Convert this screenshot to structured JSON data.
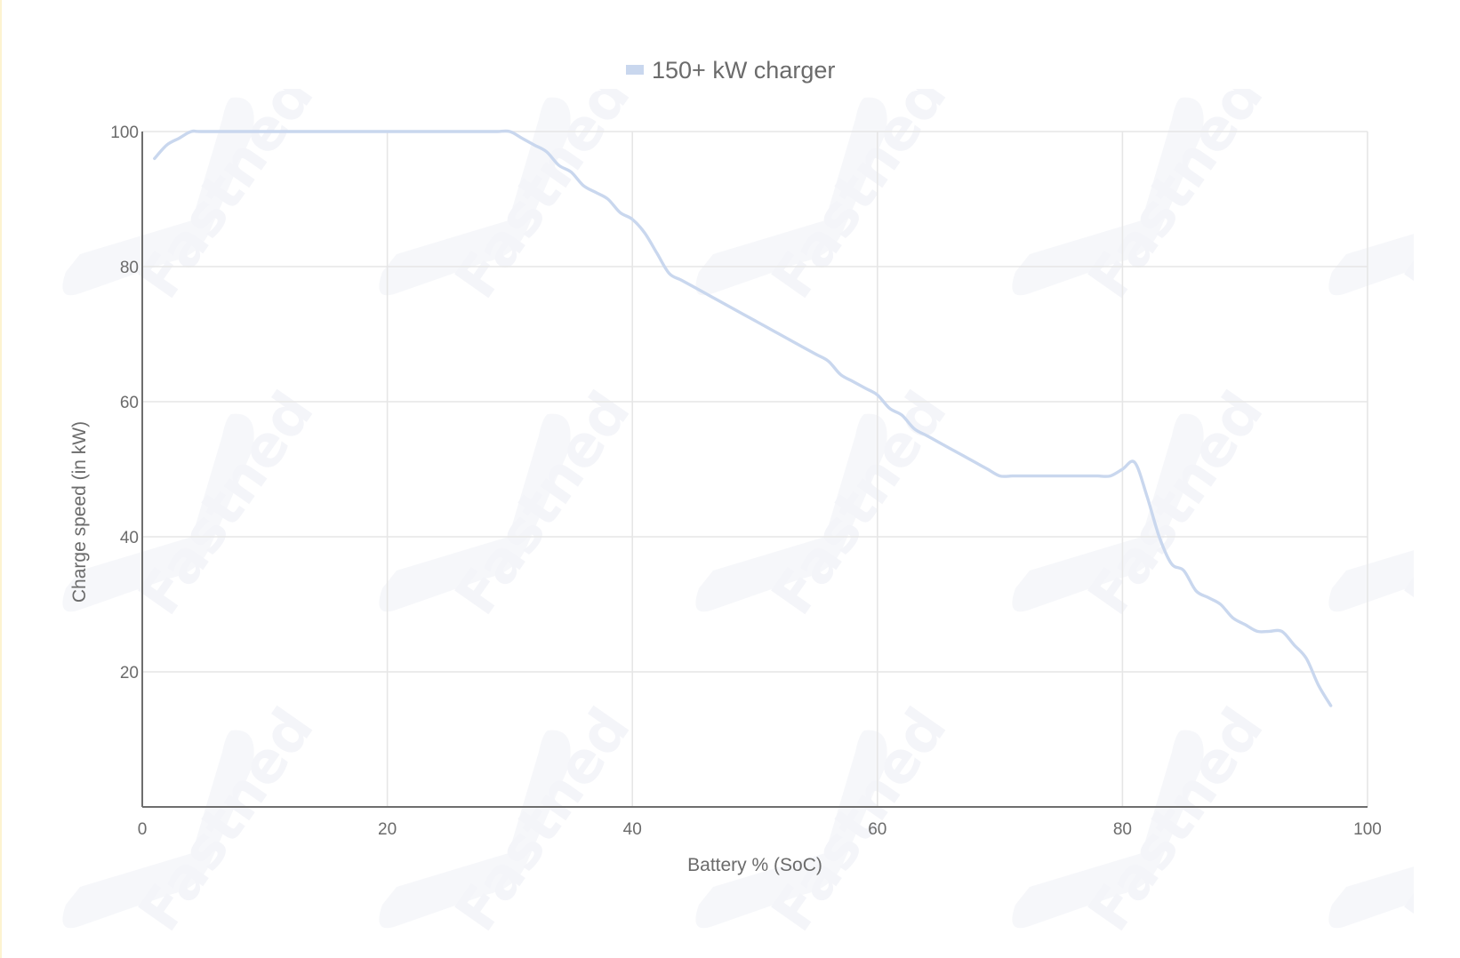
{
  "watermark": {
    "brand": "Fastned"
  },
  "chart_data": {
    "type": "line",
    "title": "",
    "xlabel": "Battery % (SoC)",
    "ylabel": "Charge speed (in kW)",
    "xlim": [
      0,
      100
    ],
    "ylim": [
      0,
      100
    ],
    "xticks": [
      0,
      20,
      40,
      60,
      80,
      100
    ],
    "yticks": [
      20,
      40,
      60,
      80,
      100
    ],
    "grid": true,
    "legend_position": "top-center",
    "series": [
      {
        "name": "150+ kW charger",
        "color": "#c9d7ee",
        "x": [
          1,
          2,
          3,
          4,
          5,
          10,
          20,
          28,
          29,
          30,
          31,
          32,
          33,
          34,
          35,
          36,
          37,
          38,
          39,
          40,
          41,
          42,
          43,
          44,
          45,
          46,
          47,
          48,
          49,
          50,
          51,
          52,
          53,
          54,
          55,
          56,
          57,
          58,
          59,
          60,
          61,
          62,
          63,
          64,
          65,
          66,
          67,
          68,
          69,
          70,
          71,
          72,
          73,
          74,
          75,
          76,
          77,
          78,
          79,
          80,
          81,
          82,
          83,
          84,
          85,
          86,
          87,
          88,
          89,
          90,
          91,
          92,
          93,
          94,
          95,
          96,
          97
        ],
        "y": [
          96,
          98,
          99,
          100,
          100,
          100,
          100,
          100,
          100,
          100,
          99,
          98,
          97,
          95,
          94,
          92,
          91,
          90,
          88,
          87,
          85,
          82,
          79,
          78,
          77,
          76,
          75,
          74,
          73,
          72,
          71,
          70,
          69,
          68,
          67,
          66,
          64,
          63,
          62,
          61,
          59,
          58,
          56,
          55,
          54,
          53,
          52,
          51,
          50,
          49,
          49,
          49,
          49,
          49,
          49,
          49,
          49,
          49,
          49,
          50,
          51,
          46,
          40,
          36,
          35,
          32,
          31,
          30,
          28,
          27,
          26,
          26,
          26,
          24,
          22,
          18,
          15
        ]
      }
    ]
  }
}
